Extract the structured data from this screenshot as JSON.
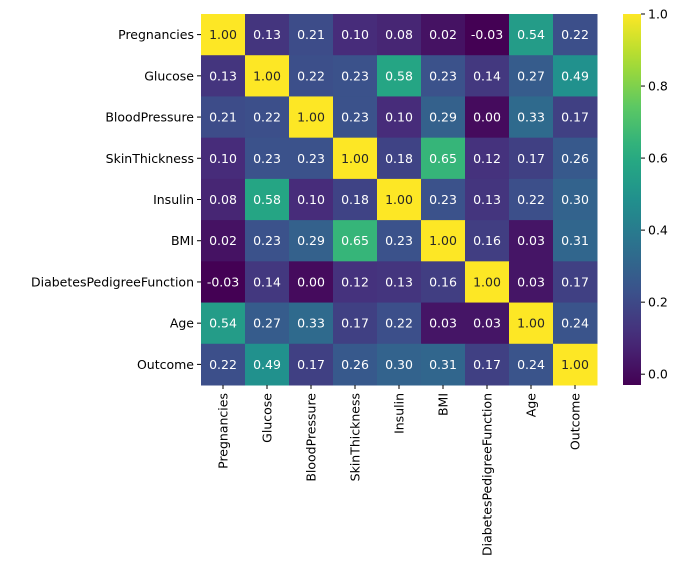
{
  "chart_data": {
    "type": "heatmap",
    "title": "",
    "xlabel": "",
    "ylabel": "",
    "colormap": "viridis",
    "annotation_format": "0.00",
    "row_labels": [
      "Pregnancies",
      "Glucose",
      "BloodPressure",
      "SkinThickness",
      "Insulin",
      "BMI",
      "DiabetesPedigreeFunction",
      "Age",
      "Outcome"
    ],
    "column_labels": [
      "Pregnancies",
      "Glucose",
      "BloodPressure",
      "SkinThickness",
      "Insulin",
      "BMI",
      "DiabetesPedigreeFunction",
      "Age",
      "Outcome"
    ],
    "values": [
      [
        1.0,
        0.13,
        0.21,
        0.1,
        0.08,
        0.02,
        -0.03,
        0.54,
        0.22
      ],
      [
        0.13,
        1.0,
        0.22,
        0.23,
        0.58,
        0.23,
        0.14,
        0.27,
        0.49
      ],
      [
        0.21,
        0.22,
        1.0,
        0.23,
        0.1,
        0.29,
        -0.0,
        0.33,
        0.17
      ],
      [
        0.1,
        0.23,
        0.23,
        1.0,
        0.18,
        0.65,
        0.12,
        0.17,
        0.26
      ],
      [
        0.08,
        0.58,
        0.1,
        0.18,
        1.0,
        0.23,
        0.13,
        0.22,
        0.3
      ],
      [
        0.02,
        0.23,
        0.29,
        0.65,
        0.23,
        1.0,
        0.16,
        0.03,
        0.31
      ],
      [
        -0.03,
        0.14,
        -0.0,
        0.12,
        0.13,
        0.16,
        1.0,
        0.03,
        0.17
      ],
      [
        0.54,
        0.27,
        0.33,
        0.17,
        0.22,
        0.03,
        0.03,
        1.0,
        0.24
      ],
      [
        0.22,
        0.49,
        0.17,
        0.26,
        0.3,
        0.31,
        0.17,
        0.24,
        1.0
      ]
    ],
    "colorbar": {
      "range": [
        -0.03,
        1.0
      ],
      "ticks": [
        0.0,
        0.2,
        0.4,
        0.6,
        0.8,
        1.0
      ],
      "tick_labels": [
        "0.0",
        "0.2",
        "0.4",
        "0.6",
        "0.8",
        "1.0"
      ],
      "placement": "right"
    },
    "text_colors": {
      "dark_cell_text": "#ffffff",
      "light_cell_text": "#262626"
    }
  }
}
